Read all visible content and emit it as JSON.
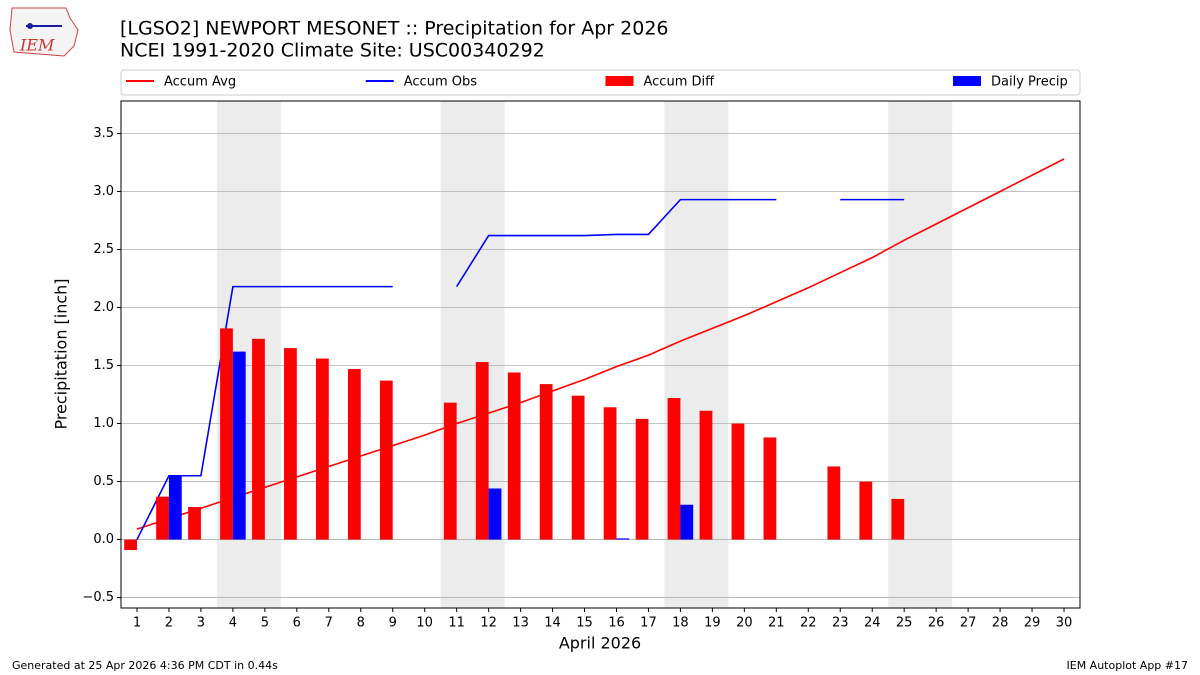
{
  "logo_text": "IEM",
  "chart_data": {
    "type": "combo",
    "title": "[LGSO2] NEWPORT MESONET :: Precipitation for Apr 2026",
    "subtitle": "NCEI 1991-2020 Climate Site: USC00340292",
    "xlabel": "April 2026",
    "ylabel": "Precipitation [inch]",
    "footer_left": "Generated at 25 Apr 2026 4:36 PM CDT in 0.44s",
    "footer_right": "IEM Autoplot App #17",
    "x": [
      1,
      2,
      3,
      4,
      5,
      6,
      7,
      8,
      9,
      10,
      11,
      12,
      13,
      14,
      15,
      16,
      17,
      18,
      19,
      20,
      21,
      22,
      23,
      24,
      25,
      26,
      27,
      28,
      29,
      30
    ],
    "xlim": [
      0.5,
      30.5
    ],
    "xticks": [
      1,
      2,
      3,
      4,
      5,
      6,
      7,
      8,
      9,
      10,
      11,
      12,
      13,
      14,
      15,
      16,
      17,
      18,
      19,
      20,
      21,
      22,
      23,
      24,
      25,
      26,
      27,
      28,
      29,
      30
    ],
    "ylim": [
      -0.59,
      3.78
    ],
    "yticks": [
      {
        "value": -0.5,
        "label": "−0.5"
      },
      {
        "value": 0,
        "label": "0.0"
      },
      0.5,
      {
        "value": 1,
        "label": "1.0"
      },
      1.5,
      {
        "value": 2,
        "label": "2.0"
      },
      2.5,
      {
        "value": 3,
        "label": "3.0"
      },
      3.5
    ],
    "grid": true,
    "shaded_days": [
      4,
      5,
      11,
      12,
      18,
      19,
      25,
      26
    ],
    "shade_color": "#ececec",
    "series": [
      {
        "name": "Accum Avg",
        "type": "line",
        "color": "#ff0000",
        "values": [
          0.09,
          0.18,
          0.27,
          0.36,
          0.45,
          0.54,
          0.63,
          0.72,
          0.81,
          0.9,
          1.0,
          1.09,
          1.18,
          1.28,
          1.38,
          1.49,
          1.59,
          1.71,
          1.82,
          1.93,
          2.05,
          2.17,
          2.3,
          2.43,
          2.58,
          2.72,
          2.86,
          3.0,
          3.14,
          3.28
        ]
      },
      {
        "name": "Accum Obs",
        "type": "line",
        "color": "#0000ff",
        "values": [
          0.0,
          0.55,
          0.55,
          2.18,
          2.18,
          2.18,
          2.18,
          2.18,
          2.18,
          null,
          2.18,
          2.62,
          2.62,
          2.62,
          2.62,
          2.63,
          2.63,
          2.93,
          2.93,
          2.93,
          2.93,
          null,
          2.93,
          2.93,
          2.93,
          null,
          null,
          null,
          null,
          null
        ]
      },
      {
        "name": "Accum Diff",
        "type": "bar",
        "color": "#ff0000",
        "values": [
          -0.09,
          0.37,
          0.28,
          1.82,
          1.73,
          1.65,
          1.56,
          1.47,
          1.37,
          null,
          1.18,
          1.53,
          1.44,
          1.34,
          1.24,
          1.14,
          1.04,
          1.22,
          1.11,
          1.0,
          0.88,
          null,
          0.63,
          0.5,
          0.35,
          null,
          null,
          null,
          null,
          null
        ]
      },
      {
        "name": "Daily Precip",
        "type": "bar",
        "color": "#0000ff",
        "values": [
          0,
          0.55,
          0,
          1.62,
          0,
          0,
          0,
          0,
          0,
          null,
          0,
          0.44,
          0,
          0,
          0,
          0.01,
          0,
          0.3,
          0,
          0,
          0,
          null,
          0,
          0,
          0,
          null,
          null,
          null,
          null,
          null
        ]
      }
    ]
  }
}
